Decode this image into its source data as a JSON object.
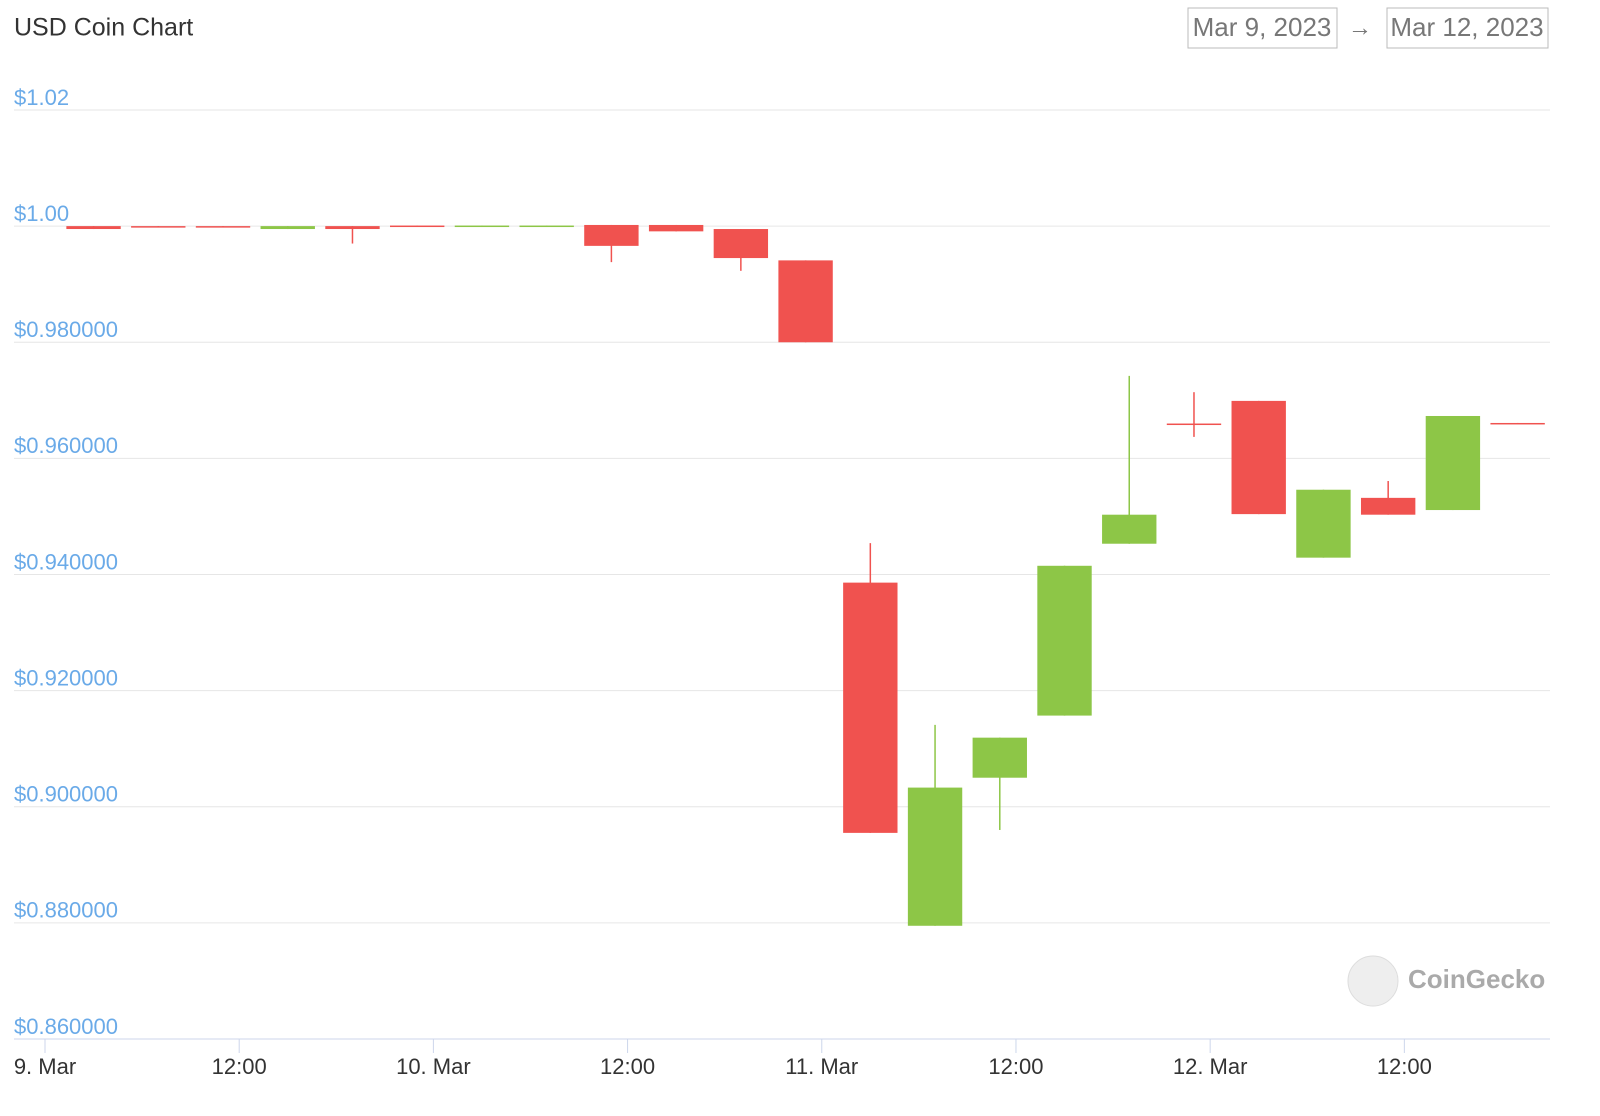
{
  "chart_data": {
    "type": "candlestick",
    "title": "USD Coin Chart",
    "date_from": "Mar 9, 2023",
    "separator": "→",
    "date_to": "Mar 12, 2023",
    "watermark": "CoinGecko",
    "x": [
      3,
      7,
      11,
      15,
      19,
      23,
      27,
      31,
      35,
      39,
      43,
      47,
      51,
      55,
      59,
      63,
      67,
      71,
      75,
      79,
      83,
      87,
      91
    ],
    "series": [
      {
        "open": [
          1.0,
          1.0,
          1.0,
          0.9995,
          1.0,
          1.0001,
          1.0,
          1.0,
          1.0002,
          1.0002,
          0.9995,
          0.9941,
          0.9386,
          0.8795,
          0.905,
          0.9157,
          0.9453,
          0.966,
          0.9699,
          0.9429,
          0.9532,
          0.9511,
          0.9661
        ],
        "high": [
          1.0,
          1.0,
          1.0,
          1.0,
          1.0,
          1.0001,
          1.0001,
          1.0001,
          1.0002,
          1.0002,
          0.9995,
          0.9941,
          0.9454,
          0.9141,
          0.9119,
          0.9415,
          0.9742,
          0.9714,
          0.9699,
          0.9546,
          0.9561,
          0.9673,
          0.9661
        ],
        "low": [
          0.9995,
          0.9999,
          0.9999,
          0.9995,
          0.997,
          1.0,
          1.0,
          1.0,
          0.9938,
          0.9991,
          0.9923,
          0.98,
          0.8955,
          0.8795,
          0.896,
          0.9157,
          0.9453,
          0.9637,
          0.9504,
          0.9429,
          0.9503,
          0.9511,
          0.966
        ],
        "close": [
          0.9995,
          0.9999,
          0.9999,
          1.0,
          0.9995,
          1.0,
          1.0001,
          1.0001,
          0.9966,
          0.9991,
          0.9945,
          0.98,
          0.8955,
          0.9033,
          0.9119,
          0.9415,
          0.9503,
          0.9659,
          0.9504,
          0.9546,
          0.9503,
          0.9673,
          0.966
        ]
      }
    ],
    "up_color": "#8dc647",
    "down_color": "#f0524f",
    "xlim": [
      0,
      93
    ],
    "xticks": [
      {
        "value": 0,
        "label": "9. Mar"
      },
      {
        "value": 12,
        "label": "12:00"
      },
      {
        "value": 24,
        "label": "10. Mar"
      },
      {
        "value": 36,
        "label": "12:00"
      },
      {
        "value": 48,
        "label": "11. Mar"
      },
      {
        "value": 60,
        "label": "12:00"
      },
      {
        "value": 72,
        "label": "12. Mar"
      },
      {
        "value": 84,
        "label": "12:00"
      }
    ],
    "ylim": [
      0.86,
      1.02
    ],
    "yticks": [
      {
        "value": 0.86,
        "label": "$0.860000"
      },
      {
        "value": 0.88,
        "label": "$0.880000"
      },
      {
        "value": 0.9,
        "label": "$0.900000"
      },
      {
        "value": 0.92,
        "label": "$0.920000"
      },
      {
        "value": 0.94,
        "label": "$0.940000"
      },
      {
        "value": 0.96,
        "label": "$0.960000"
      },
      {
        "value": 0.98,
        "label": "$0.980000"
      },
      {
        "value": 1.0,
        "label": "$1.00"
      },
      {
        "value": 1.02,
        "label": "$1.02"
      }
    ],
    "grid": true
  }
}
